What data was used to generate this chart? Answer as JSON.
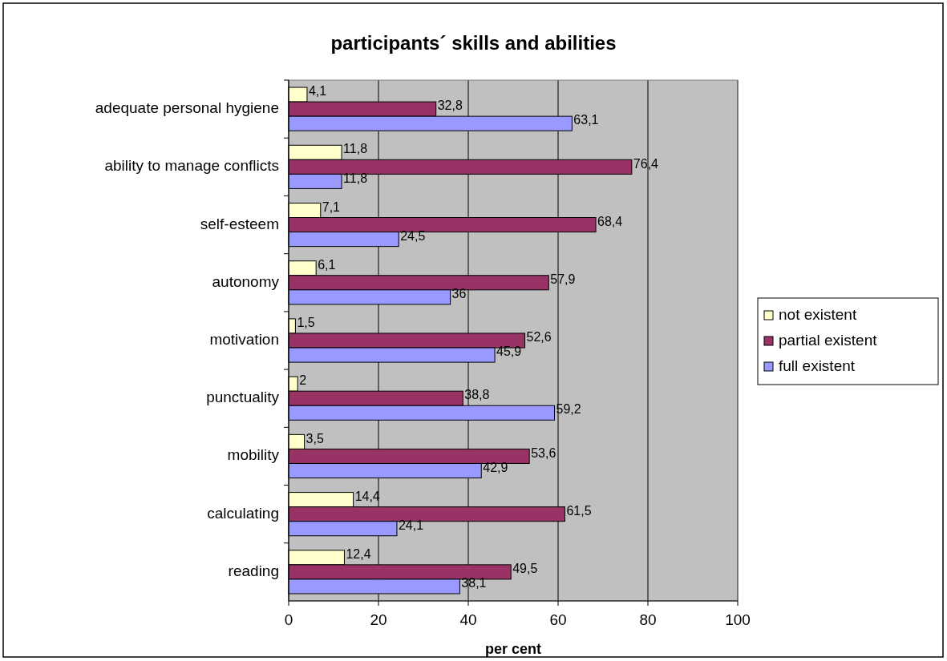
{
  "chart_data": {
    "type": "bar",
    "orientation": "horizontal",
    "title": "participants´ skills and abilities",
    "xlabel": "per cent",
    "categories": [
      "adequate personal hygiene",
      "ability to manage conflicts",
      "self-esteem",
      "autonomy",
      "motivation",
      "punctuality",
      "mobility",
      "calculating",
      "reading"
    ],
    "series": [
      {
        "name": "not existent",
        "color": "#ffffcc",
        "values": [
          4.1,
          11.8,
          7.1,
          6.1,
          1.5,
          2,
          3.5,
          14.4,
          12.4
        ],
        "value_labels": [
          "4,1",
          "11,8",
          "7,1",
          "6,1",
          "1,5",
          "2",
          "3,5",
          "14,4",
          "12,4"
        ]
      },
      {
        "name": "partial existent",
        "color": "#993366",
        "values": [
          32.8,
          76.4,
          68.4,
          57.9,
          52.6,
          38.8,
          53.6,
          61.5,
          49.5
        ],
        "value_labels": [
          "32,8",
          "76,4",
          "68,4",
          "57,9",
          "52,6",
          "38,8",
          "53,6",
          "61,5",
          "49,5"
        ]
      },
      {
        "name": "full existent",
        "color": "#9999ff",
        "values": [
          63.1,
          11.8,
          24.5,
          36,
          45.9,
          59.2,
          42.9,
          24.1,
          38.1
        ],
        "value_labels": [
          "63,1",
          "11,8",
          "24,5",
          "36",
          "45,9",
          "59,2",
          "42,9",
          "24,1",
          "38,1"
        ]
      }
    ],
    "xlim": [
      0,
      100
    ],
    "xticks": [
      0,
      20,
      40,
      60,
      80,
      100
    ],
    "grid": "x",
    "legend": "right"
  }
}
